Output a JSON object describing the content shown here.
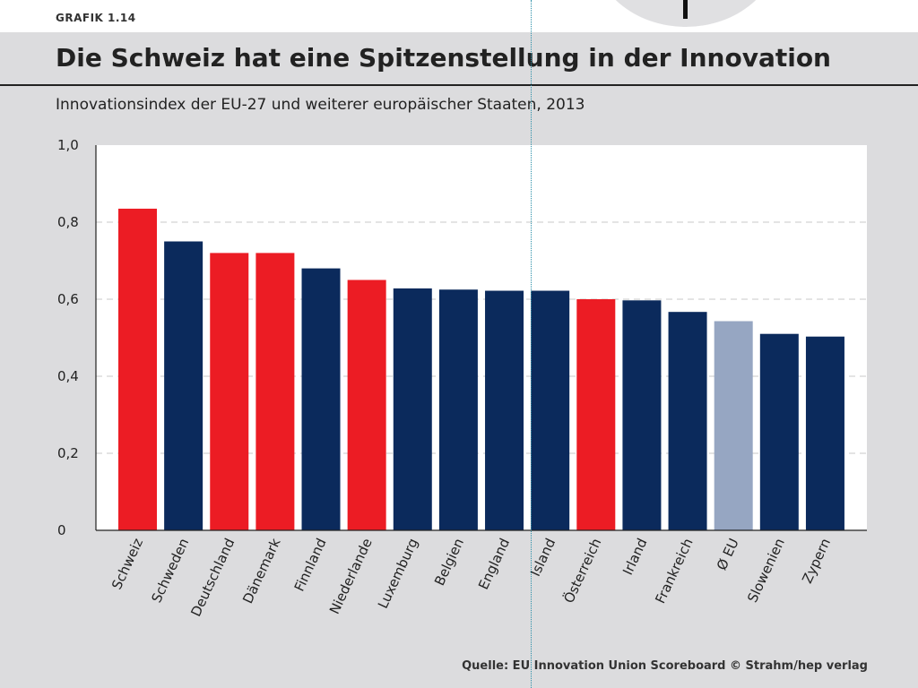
{
  "header": {
    "figure_label": "GRAFIK 1.14",
    "title": "Die Schweiz hat eine Spitzenstellung in der Innovation",
    "subtitle": "Innovationsindex der EU-27 und weiterer europäischer Staaten, 2013"
  },
  "colors": {
    "highlight": "#ec1c24",
    "default": "#0b2a5c",
    "average": "#96a6c2",
    "panel_background": "#dcdcde",
    "plot_background": "#ffffff"
  },
  "chart_data": {
    "type": "bar",
    "categories": [
      "Schweiz",
      "Schweden",
      "Deutschland",
      "Dänemark",
      "Finnland",
      "Niederlande",
      "Luxemburg",
      "Belgien",
      "England",
      "Island",
      "Österreich",
      "Irland",
      "Frankreich",
      "Ø EU",
      "Slowenien",
      "Zypern"
    ],
    "values": [
      0.835,
      0.75,
      0.72,
      0.72,
      0.68,
      0.65,
      0.628,
      0.625,
      0.622,
      0.622,
      0.6,
      0.597,
      0.567,
      0.543,
      0.51,
      0.503
    ],
    "bar_color_keys": [
      "highlight",
      "default",
      "highlight",
      "highlight",
      "default",
      "highlight",
      "default",
      "default",
      "default",
      "default",
      "highlight",
      "default",
      "default",
      "average",
      "default",
      "default"
    ],
    "y_ticks": [
      0,
      0.2,
      0.4,
      0.6,
      0.8,
      1.0
    ],
    "y_tick_labels": [
      "0",
      "0,2",
      "0,4",
      "0,6",
      "0,8",
      "1,0"
    ],
    "ylim": [
      0,
      1.0
    ],
    "xlabel": "",
    "ylabel": "",
    "grid": true,
    "legend": false
  },
  "footer": {
    "source": "Quelle: EU Innovation Union Scoreboard  © Strahm/hep verlag"
  }
}
